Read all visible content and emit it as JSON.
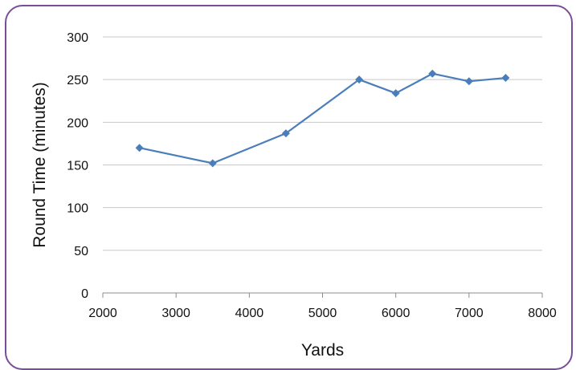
{
  "chart_data": {
    "type": "line",
    "title": "",
    "xlabel": "Yards",
    "ylabel": "Round Time (minutes)",
    "xlim": [
      2000,
      8000
    ],
    "ylim": [
      0,
      300
    ],
    "x_ticks": [
      2000,
      3000,
      4000,
      5000,
      6000,
      7000,
      8000
    ],
    "y_ticks": [
      0,
      50,
      100,
      150,
      200,
      250,
      300
    ],
    "grid": "horizontal",
    "legend": "none",
    "series": [
      {
        "color": "#4a7ebb",
        "marker": "diamond",
        "x": [
          2500,
          3500,
          4500,
          5500,
          6000,
          6500,
          7000,
          7500
        ],
        "y": [
          170,
          152,
          187,
          250,
          234,
          257,
          248,
          252
        ]
      }
    ]
  }
}
